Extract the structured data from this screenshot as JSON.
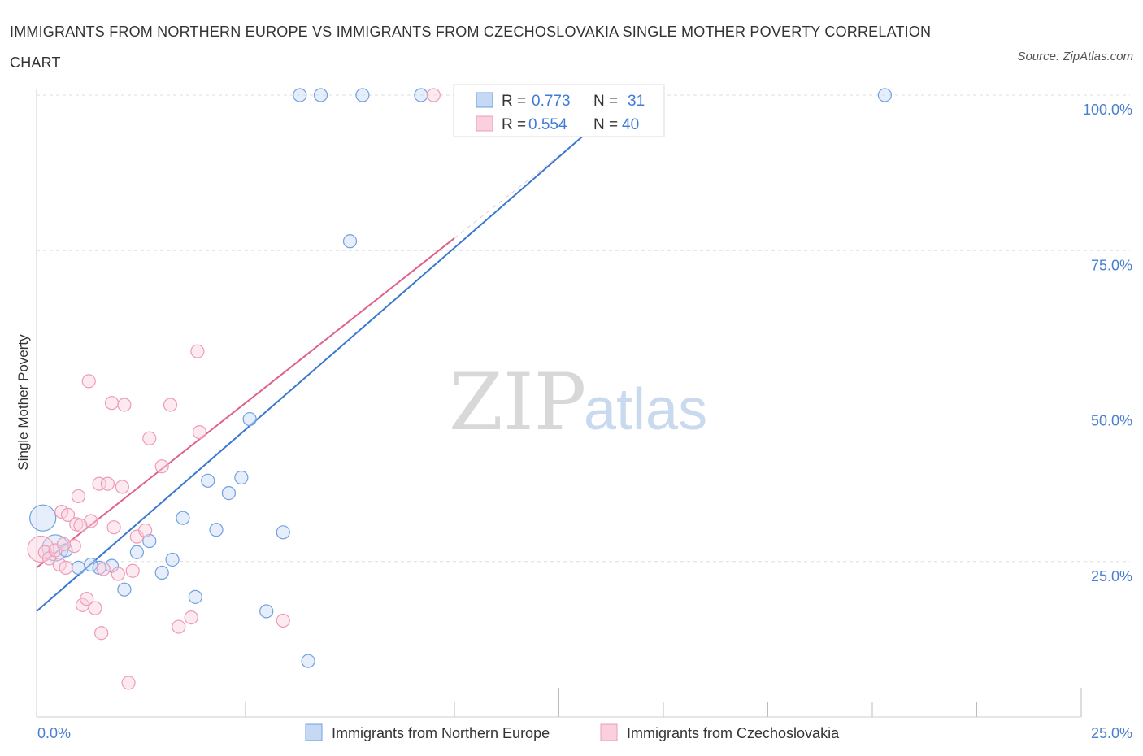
{
  "title": "IMMIGRANTS FROM NORTHERN EUROPE VS IMMIGRANTS FROM CZECHOSLOVAKIA SINGLE MOTHER POVERTY CORRELATION CHART",
  "source": "Source: ZipAtlas.com",
  "watermark": {
    "zip": "ZIP",
    "atlas": "atlas"
  },
  "legend": {
    "rows": [
      {
        "r_label": "R =",
        "r_value": "0.773",
        "n_label": "N =",
        "n_value": "31"
      },
      {
        "r_label": "R =",
        "r_value": "0.554",
        "n_label": "N =",
        "n_value": "40"
      }
    ]
  },
  "colors": {
    "blue": "#6fa0e0",
    "blue_line": "#3a78d0",
    "pink": "#ee9bb5",
    "pink_line": "#e0608a",
    "grid": "#dddddd"
  },
  "chart_data": {
    "type": "scatter",
    "xlabel": "",
    "ylabel": "Single Mother Poverty",
    "xlim": [
      0,
      25
    ],
    "ylim": [
      0,
      100
    ],
    "x_tick_labels": [
      "0.0%",
      "25.0%"
    ],
    "y_tick_labels": [
      "25.0%",
      "50.0%",
      "75.0%",
      "100.0%"
    ],
    "y_ticks": [
      25,
      50,
      75,
      100
    ],
    "grid": true,
    "legend_position": "top-center",
    "series": [
      {
        "name": "Immigrants from Northern Europe",
        "color": "#6fa0e0",
        "trend": {
          "x": [
            0,
            14.2
          ],
          "y": [
            17.0,
            100.0
          ]
        },
        "points": [
          {
            "x": 0.15,
            "y": 32.0,
            "big": true
          },
          {
            "x": 0.45,
            "y": 27.2,
            "big": true
          },
          {
            "x": 0.7,
            "y": 26.8
          },
          {
            "x": 1.0,
            "y": 24.0
          },
          {
            "x": 1.3,
            "y": 24.5
          },
          {
            "x": 1.5,
            "y": 24.0
          },
          {
            "x": 1.8,
            "y": 24.3
          },
          {
            "x": 2.1,
            "y": 20.5
          },
          {
            "x": 2.4,
            "y": 26.5
          },
          {
            "x": 2.7,
            "y": 28.3
          },
          {
            "x": 3.0,
            "y": 23.2
          },
          {
            "x": 3.25,
            "y": 25.3
          },
          {
            "x": 3.5,
            "y": 32.0
          },
          {
            "x": 3.8,
            "y": 19.3
          },
          {
            "x": 4.1,
            "y": 38.0
          },
          {
            "x": 4.3,
            "y": 30.1
          },
          {
            "x": 4.6,
            "y": 36.0
          },
          {
            "x": 4.9,
            "y": 38.5
          },
          {
            "x": 5.1,
            "y": 47.9
          },
          {
            "x": 5.5,
            "y": 17.0
          },
          {
            "x": 5.9,
            "y": 29.7
          },
          {
            "x": 6.5,
            "y": 9.0
          },
          {
            "x": 7.5,
            "y": 76.5
          },
          {
            "x": 6.3,
            "y": 100.0
          },
          {
            "x": 6.8,
            "y": 100.0
          },
          {
            "x": 7.8,
            "y": 100.0
          },
          {
            "x": 9.2,
            "y": 100.0
          },
          {
            "x": 10.2,
            "y": 100.0
          },
          {
            "x": 11.5,
            "y": 100.0
          },
          {
            "x": 13.5,
            "y": 100.0
          },
          {
            "x": 20.3,
            "y": 100.0
          }
        ]
      },
      {
        "name": "Immigrants from Czechoslovakia",
        "color": "#ee9bb5",
        "trend": {
          "x": [
            0,
            10.0
          ],
          "y": [
            24.0,
            77.0
          ]
        },
        "points": [
          {
            "x": 0.1,
            "y": 27.0,
            "big": true
          },
          {
            "x": 0.2,
            "y": 26.5
          },
          {
            "x": 0.3,
            "y": 25.5
          },
          {
            "x": 0.45,
            "y": 26.8
          },
          {
            "x": 0.55,
            "y": 24.5
          },
          {
            "x": 0.6,
            "y": 33.0
          },
          {
            "x": 0.7,
            "y": 24.0
          },
          {
            "x": 0.75,
            "y": 32.5
          },
          {
            "x": 0.9,
            "y": 27.5
          },
          {
            "x": 0.95,
            "y": 31.0
          },
          {
            "x": 1.0,
            "y": 35.5
          },
          {
            "x": 1.1,
            "y": 18.0
          },
          {
            "x": 1.2,
            "y": 19.0
          },
          {
            "x": 1.25,
            "y": 54.0
          },
          {
            "x": 1.3,
            "y": 31.5
          },
          {
            "x": 1.4,
            "y": 17.5
          },
          {
            "x": 1.5,
            "y": 37.5
          },
          {
            "x": 1.55,
            "y": 13.5
          },
          {
            "x": 1.6,
            "y": 23.8
          },
          {
            "x": 1.7,
            "y": 37.5
          },
          {
            "x": 1.8,
            "y": 50.5
          },
          {
            "x": 1.85,
            "y": 30.5
          },
          {
            "x": 1.95,
            "y": 23.0
          },
          {
            "x": 2.05,
            "y": 37.0
          },
          {
            "x": 2.1,
            "y": 50.2
          },
          {
            "x": 2.2,
            "y": 5.5
          },
          {
            "x": 2.4,
            "y": 29.0
          },
          {
            "x": 2.6,
            "y": 30.0
          },
          {
            "x": 2.7,
            "y": 44.8
          },
          {
            "x": 3.0,
            "y": 40.3
          },
          {
            "x": 3.2,
            "y": 50.2
          },
          {
            "x": 3.4,
            "y": 14.5
          },
          {
            "x": 3.7,
            "y": 16.0
          },
          {
            "x": 3.9,
            "y": 45.8
          },
          {
            "x": 3.85,
            "y": 58.8
          },
          {
            "x": 5.9,
            "y": 15.5
          },
          {
            "x": 9.5,
            "y": 100.0
          },
          {
            "x": 0.65,
            "y": 27.8
          },
          {
            "x": 1.05,
            "y": 30.8
          },
          {
            "x": 2.3,
            "y": 23.5
          }
        ]
      }
    ]
  }
}
